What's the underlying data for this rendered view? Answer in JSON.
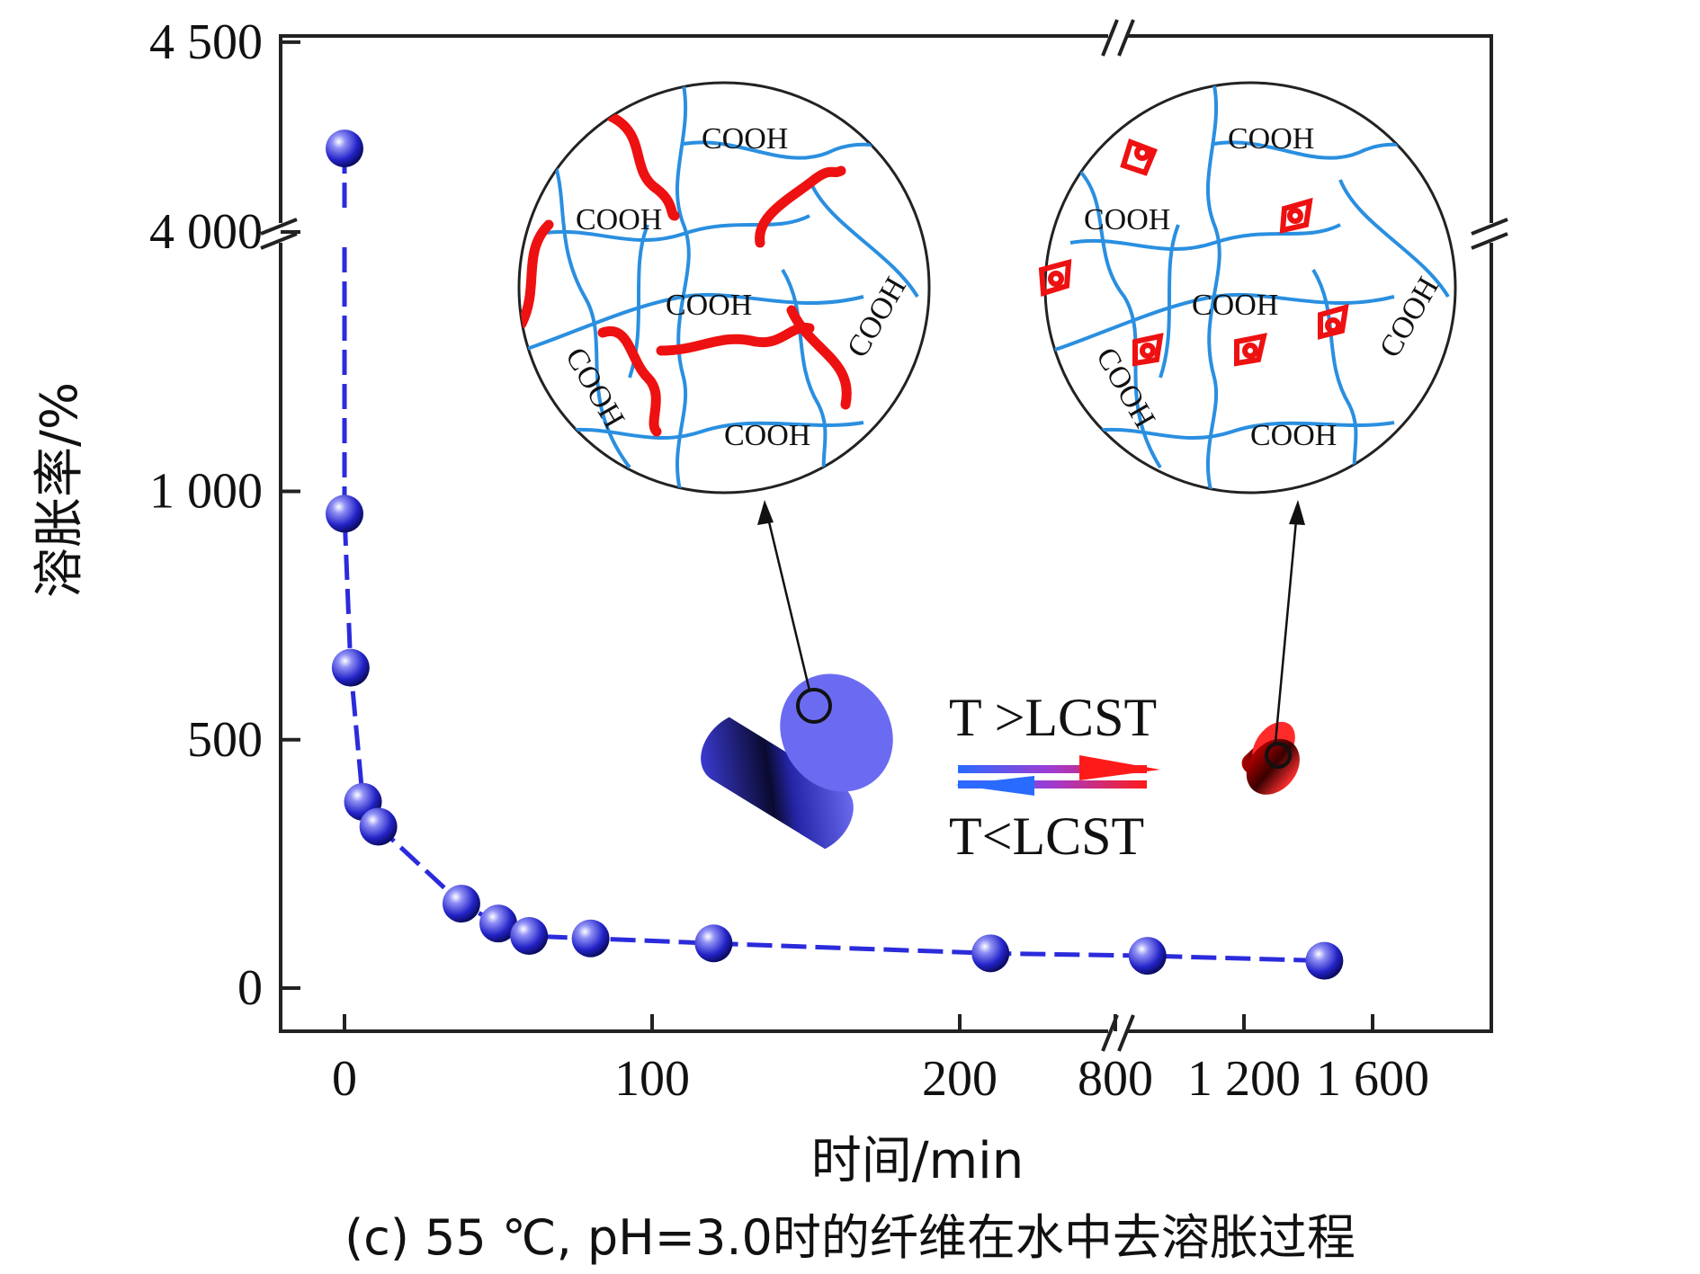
{
  "chart_data": {
    "type": "scatter",
    "caption": "(c) 55 ℃, pH=3.0时的纤维在水中去溶胀过程",
    "xlabel": "时间/min",
    "ylabel": "溶胀率/%",
    "x_ticks": [
      "0",
      "100",
      "200",
      "800",
      "1 200",
      "1 600"
    ],
    "y_ticks": [
      "0",
      "500",
      "1 000",
      "4 000",
      "4 500"
    ],
    "x_axis_break": [
      250,
      800
    ],
    "y_axis_break": [
      1500,
      4000
    ],
    "series": [
      {
        "color": "#2b2bdc",
        "points": [
          {
            "x": 0,
            "y": 4220
          },
          {
            "x": 0,
            "y": 955
          },
          {
            "x": 2,
            "y": 645
          },
          {
            "x": 6,
            "y": 375
          },
          {
            "x": 11,
            "y": 325
          },
          {
            "x": 38,
            "y": 170
          },
          {
            "x": 50,
            "y": 130
          },
          {
            "x": 60,
            "y": 105
          },
          {
            "x": 80,
            "y": 100
          },
          {
            "x": 120,
            "y": 90
          },
          {
            "x": 210,
            "y": 70
          },
          {
            "x": 900,
            "y": 65
          },
          {
            "x": 1450,
            "y": 55
          }
        ]
      }
    ],
    "inset": {
      "group_label": "COOH",
      "arrow_upper": "T >LCST",
      "arrow_lower": "T<LCST"
    }
  }
}
